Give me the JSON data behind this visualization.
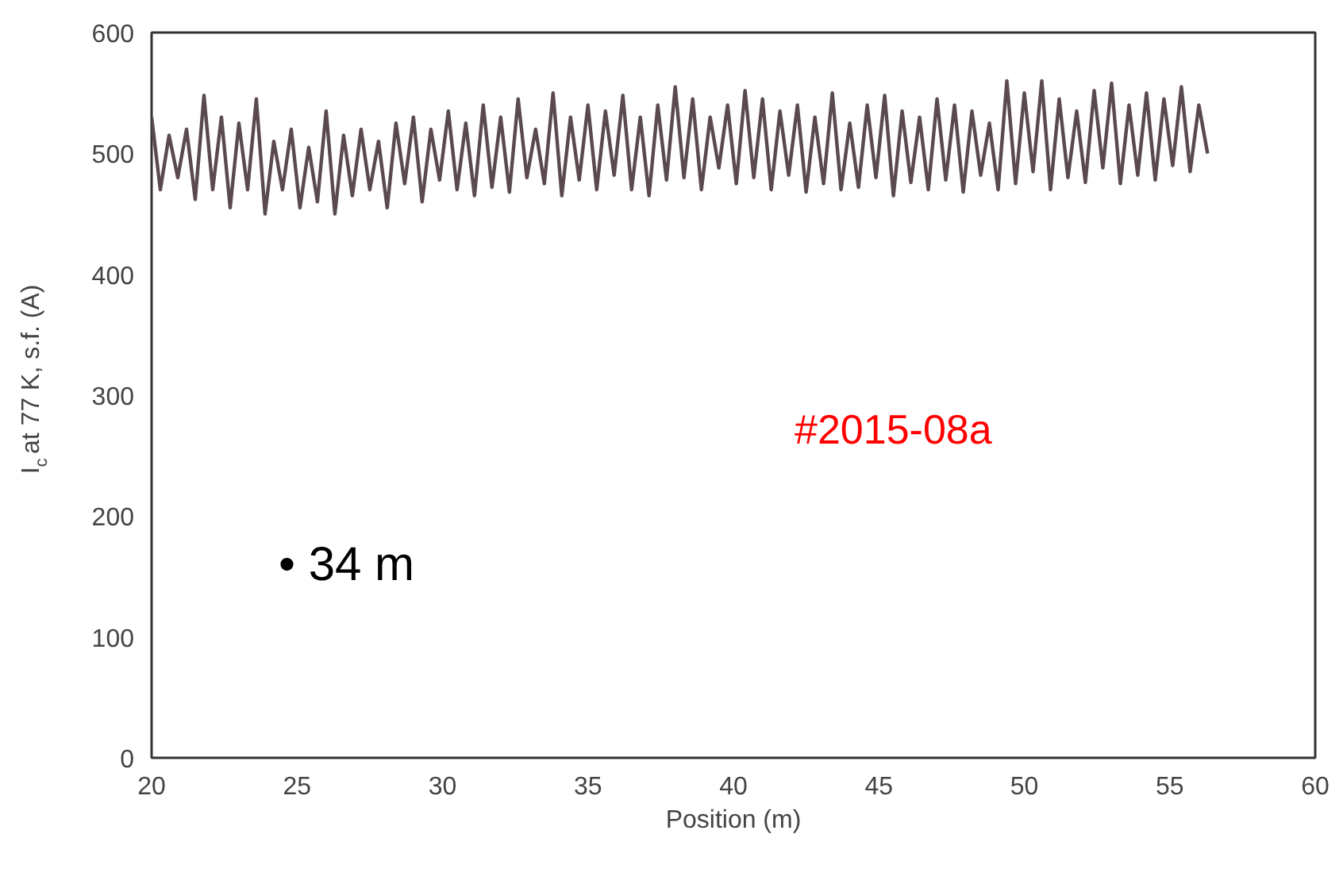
{
  "chart_data": {
    "type": "line",
    "xlabel": "Position (m)",
    "ylabel": "I$_{c}$ at 77 K, s.f. (A)",
    "annotations": [
      "#2015-08a",
      "•   34 m"
    ],
    "x": [
      20.0,
      20.3,
      20.6,
      20.9,
      21.2,
      21.5,
      21.8,
      22.1,
      22.4,
      22.7,
      23.0,
      23.3,
      23.6,
      23.9,
      24.2,
      24.5,
      24.8,
      25.1,
      25.4,
      25.7,
      26.0,
      26.3,
      26.6,
      26.9,
      27.2,
      27.5,
      27.8,
      28.1,
      28.4,
      28.7,
      29.0,
      29.3,
      29.6,
      29.9,
      30.2,
      30.5,
      30.8,
      31.1,
      31.4,
      31.7,
      32.0,
      32.3,
      32.6,
      32.9,
      33.2,
      33.5,
      33.8,
      34.1,
      34.4,
      34.7,
      35.0,
      35.3,
      35.6,
      35.9,
      36.2,
      36.5,
      36.8,
      37.1,
      37.4,
      37.7,
      38.0,
      38.3,
      38.6,
      38.9,
      39.2,
      39.5,
      39.8,
      40.1,
      40.4,
      40.7,
      41.0,
      41.3,
      41.6,
      41.9,
      42.2,
      42.5,
      42.8,
      43.1,
      43.4,
      43.7,
      44.0,
      44.3,
      44.6,
      44.9,
      45.2,
      45.5,
      45.8,
      46.1,
      46.4,
      46.7,
      47.0,
      47.3,
      47.6,
      47.9,
      48.2,
      48.5,
      48.8,
      49.1,
      49.4,
      49.7,
      50.0,
      50.3,
      50.6,
      50.9,
      51.2,
      51.5,
      51.8,
      52.1,
      52.4,
      52.7,
      53.0,
      53.3,
      53.6,
      53.9,
      54.2,
      54.5,
      54.8,
      55.1,
      55.4,
      55.7,
      56.0,
      56.3
    ],
    "series": [
      {
        "color": "#5a4a4e",
        "values": [
          530,
          470,
          515,
          480,
          520,
          462,
          548,
          470,
          530,
          455,
          525,
          470,
          545,
          450,
          510,
          470,
          520,
          455,
          505,
          460,
          535,
          450,
          515,
          465,
          520,
          470,
          510,
          455,
          525,
          475,
          530,
          460,
          520,
          478,
          535,
          470,
          525,
          465,
          540,
          472,
          530,
          468,
          545,
          480,
          520,
          475,
          550,
          465,
          530,
          478,
          540,
          470,
          535,
          482,
          548,
          470,
          530,
          465,
          540,
          478,
          555,
          480,
          545,
          470,
          530,
          488,
          540,
          475,
          552,
          480,
          545,
          470,
          535,
          482,
          540,
          468,
          530,
          475,
          550,
          470,
          525,
          472,
          540,
          480,
          548,
          465,
          535,
          476,
          530,
          470,
          545,
          478,
          540,
          468,
          535,
          482,
          525,
          470,
          560,
          475,
          550,
          485,
          560,
          470,
          545,
          480,
          535,
          476,
          552,
          488,
          558,
          475,
          540,
          482,
          550,
          478,
          545,
          490,
          555,
          485,
          540,
          500
        ]
      }
    ],
    "xlim": [
      20,
      60
    ],
    "xticks": [
      20,
      25,
      30,
      35,
      40,
      45,
      50,
      55,
      60
    ],
    "ylim": [
      0,
      600
    ],
    "yticks": [
      0,
      100,
      200,
      300,
      400,
      500,
      600
    ],
    "grid": false
  }
}
